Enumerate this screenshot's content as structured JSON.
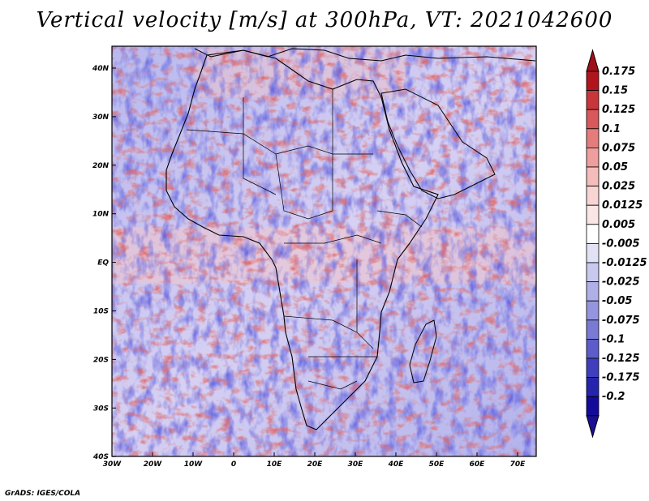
{
  "title": "Vertical velocity [m/s] at 300hPa, VT: 2021042600",
  "credit": "GrADS: IGES/COLA",
  "map": {
    "region": "Africa and surrounding oceans",
    "lon_labels": [
      "30W",
      "20W",
      "10W",
      "0",
      "10E",
      "20E",
      "30E",
      "40E",
      "50E",
      "60E",
      "70E"
    ],
    "lat_labels": [
      "40N",
      "30N",
      "20N",
      "10N",
      "EQ",
      "10S",
      "20S",
      "30S",
      "40S"
    ]
  },
  "colorbar": {
    "labels": [
      "0.175",
      "0.15",
      "0.125",
      "0.1",
      "0.075",
      "0.05",
      "0.025",
      "0.0125",
      "0.005",
      "-0.005",
      "-0.0125",
      "-0.025",
      "-0.05",
      "-0.075",
      "-0.1",
      "-0.125",
      "-0.175",
      "-0.2"
    ],
    "colors": [
      "#b0151c",
      "#c8353a",
      "#d8585b",
      "#e57c7c",
      "#ee9e9c",
      "#f4bcbb",
      "#f8d4d3",
      "#fbe6e6",
      "#ffffff",
      "#e2e2f6",
      "#c9c9ef",
      "#b0b0e8",
      "#9595df",
      "#7a7ad5",
      "#5c5cca",
      "#3f3fbd",
      "#2424ad",
      "#140a9a"
    ],
    "top_color": "#a01018",
    "bottom_color": "#1a0e95"
  }
}
